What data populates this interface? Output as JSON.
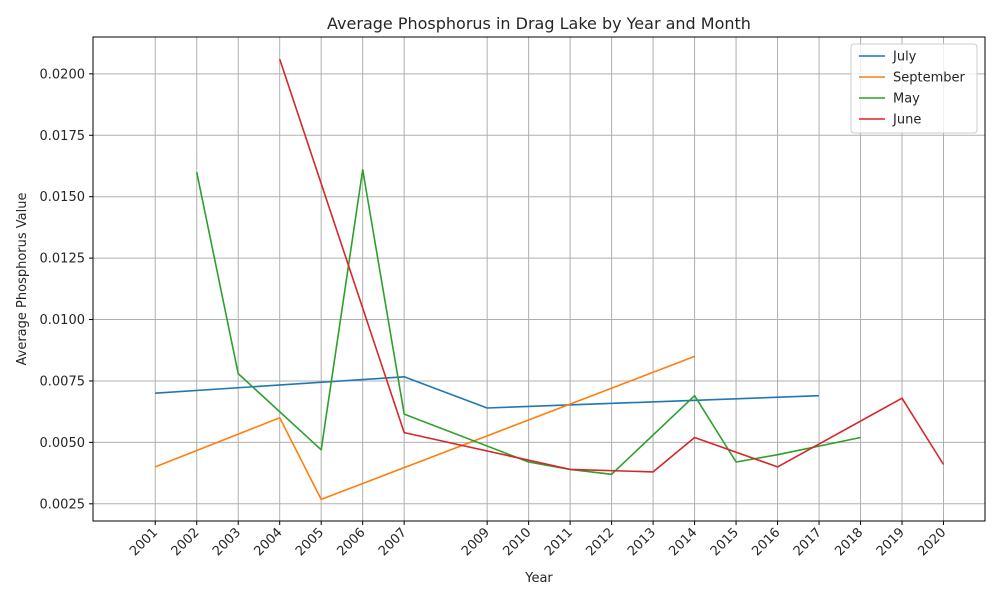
{
  "chart_data": {
    "type": "line",
    "title": "Average Phosphorus in Drag Lake by Year and Month",
    "xlabel": "Year",
    "ylabel": "Average Phosphorus Value",
    "xlim": [
      1999.5,
      2021.0
    ],
    "ylim": [
      0.0018,
      0.0215
    ],
    "grid": true,
    "legend_position": "top-right",
    "x_ticks": [
      "2001",
      "2002",
      "2003",
      "2004",
      "2005",
      "2006",
      "2007",
      "2009",
      "2010",
      "2011",
      "2012",
      "2013",
      "2014",
      "2015",
      "2016",
      "2017",
      "2018",
      "2019",
      "2020"
    ],
    "y_ticks": [
      "0.0025",
      "0.0050",
      "0.0075",
      "0.0100",
      "0.0125",
      "0.0150",
      "0.0175",
      "0.0200"
    ],
    "series": [
      {
        "name": "July",
        "color": "#1f77b4",
        "points": [
          [
            2001,
            0.007
          ],
          [
            2007,
            0.00767
          ],
          [
            2009,
            0.0064
          ],
          [
            2017,
            0.0069
          ]
        ]
      },
      {
        "name": "September",
        "color": "#ff7f0e",
        "points": [
          [
            2001,
            0.004
          ],
          [
            2004,
            0.006
          ],
          [
            2005,
            0.00268
          ],
          [
            2014,
            0.0085
          ]
        ]
      },
      {
        "name": "May",
        "color": "#2ca02c",
        "points": [
          [
            2002,
            0.016
          ],
          [
            2003,
            0.0078
          ],
          [
            2005,
            0.0047
          ],
          [
            2006,
            0.0161
          ],
          [
            2007,
            0.00615
          ],
          [
            2010,
            0.0042
          ],
          [
            2011,
            0.0039
          ],
          [
            2012,
            0.0037
          ],
          [
            2014,
            0.0069
          ],
          [
            2015,
            0.0042
          ],
          [
            2016,
            0.0045
          ],
          [
            2018,
            0.0052
          ]
        ]
      },
      {
        "name": "June",
        "color": "#d62728",
        "points": [
          [
            2004,
            0.0206
          ],
          [
            2007,
            0.0054
          ],
          [
            2011,
            0.0039
          ],
          [
            2013,
            0.0038
          ],
          [
            2014,
            0.0052
          ],
          [
            2016,
            0.004
          ],
          [
            2019,
            0.0068
          ],
          [
            2020,
            0.0041
          ]
        ]
      }
    ]
  }
}
